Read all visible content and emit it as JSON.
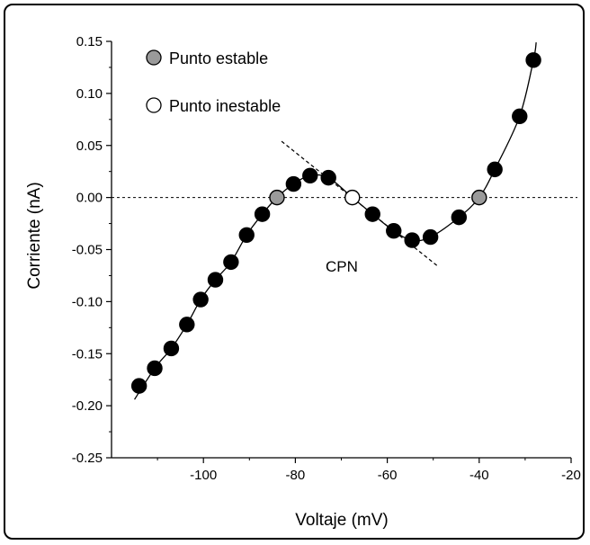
{
  "chart_data": {
    "type": "scatter",
    "xlabel": "Voltaje (mV)",
    "ylabel": "Corriente (nA)",
    "xlim": [
      -120,
      -20
    ],
    "ylim": [
      -0.25,
      0.15
    ],
    "x_ticks": [
      -100,
      -80,
      -60,
      -40,
      -20
    ],
    "y_ticks": [
      0.15,
      0.1,
      0.05,
      0.0,
      -0.05,
      -0.1,
      -0.15,
      -0.2,
      -0.25
    ],
    "legend": {
      "position": "top-left",
      "items": [
        {
          "label": "Punto estable",
          "fill": "#9a9a9a"
        },
        {
          "label": "Punto inestable",
          "fill": "#ffffff"
        }
      ]
    },
    "annotation": "CPN",
    "zero_line": true,
    "colors": {
      "data_point": "#000000",
      "stable_point": "#9a9a9a",
      "unstable_point": "#ffffff"
    },
    "series": [
      {
        "kind": "data",
        "points": [
          [
            -114,
            -0.181
          ],
          [
            -110.6,
            -0.164
          ],
          [
            -107,
            -0.145
          ],
          [
            -103.6,
            -0.122
          ],
          [
            -100.6,
            -0.098
          ],
          [
            -97.4,
            -0.079
          ],
          [
            -94,
            -0.062
          ],
          [
            -90.6,
            -0.036
          ],
          [
            -87.2,
            -0.016
          ],
          [
            -80.4,
            0.013
          ],
          [
            -76.8,
            0.021
          ],
          [
            -72.8,
            0.019
          ],
          [
            -63.2,
            -0.016
          ],
          [
            -58.6,
            -0.032
          ],
          [
            -54.6,
            -0.041
          ],
          [
            -50.6,
            -0.038
          ],
          [
            -44.4,
            -0.019
          ],
          [
            -36.6,
            0.027
          ],
          [
            -31.2,
            0.078
          ],
          [
            -28.2,
            0.132
          ]
        ]
      },
      {
        "kind": "stable",
        "points": [
          [
            -84,
            0.0
          ],
          [
            -40,
            0.0
          ]
        ]
      },
      {
        "kind": "unstable",
        "points": [
          [
            -67.6,
            0.0
          ]
        ]
      }
    ],
    "fit_curve": [
      [
        -115,
        -0.194
      ],
      [
        -110.6,
        -0.164
      ],
      [
        -107,
        -0.145
      ],
      [
        -103.6,
        -0.122
      ],
      [
        -100.6,
        -0.098
      ],
      [
        -97.4,
        -0.079
      ],
      [
        -94,
        -0.062
      ],
      [
        -90.6,
        -0.036
      ],
      [
        -87.2,
        -0.016
      ],
      [
        -84,
        0.0
      ],
      [
        -80.4,
        0.013
      ],
      [
        -76.8,
        0.021
      ],
      [
        -72.8,
        0.019
      ],
      [
        -67.6,
        0.0
      ],
      [
        -63.2,
        -0.016
      ],
      [
        -58.6,
        -0.032
      ],
      [
        -54.6,
        -0.041
      ],
      [
        -50.6,
        -0.038
      ],
      [
        -44.4,
        -0.019
      ],
      [
        -40,
        0.0
      ],
      [
        -36.6,
        0.027
      ],
      [
        -31.2,
        0.078
      ],
      [
        -28.2,
        0.132
      ],
      [
        -27.6,
        0.149
      ]
    ],
    "tangent_line": [
      [
        -83,
        0.054
      ],
      [
        -49,
        -0.066
      ]
    ]
  }
}
